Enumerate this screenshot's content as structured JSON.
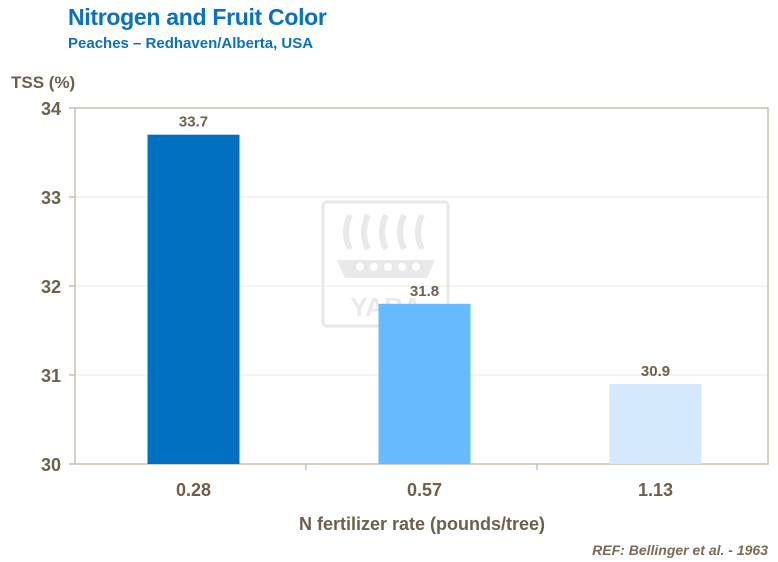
{
  "header": {
    "title": "Nitrogen and Fruit Color",
    "subtitle": "Peaches – Redhaven/Alberta,  USA"
  },
  "reference": "REF: Bellinger et al. - 1963",
  "watermark": {
    "text": "YARA",
    "icon": "yara-viking-ship-logo"
  },
  "colors": {
    "title": "#0a70c0",
    "axis_text": "#6e5f4c",
    "frame": "#c9bfb4",
    "bars": [
      "#0070c0",
      "#66bbff",
      "#d4eafc"
    ]
  },
  "chart_data": {
    "type": "bar",
    "title": "Nitrogen and Fruit Color",
    "subtitle": "Peaches – Redhaven/Alberta,  USA",
    "categories": [
      "0.28",
      "0.57",
      "1.13"
    ],
    "values": [
      33.7,
      31.8,
      30.9
    ],
    "data_labels": [
      "33.7",
      "31.8",
      "30.9"
    ],
    "xlabel": "N fertilizer rate (pounds/tree)",
    "ylabel": "TSS (%)",
    "ylim": [
      30,
      34
    ],
    "yticks": [
      "30",
      "31",
      "32",
      "33",
      "34"
    ],
    "grid": true,
    "legend": "none"
  }
}
